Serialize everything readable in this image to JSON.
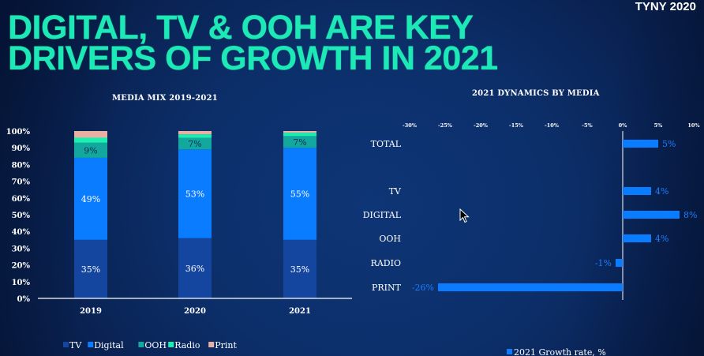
{
  "slide": {
    "title_lines": [
      "DIGITAL, TV & OOH ARE KEY",
      "DRIVERS OF GROWTH IN 2021"
    ],
    "brand": "TYNY 2020"
  },
  "colors": {
    "title": "#1de9b6",
    "TV": "#1446a0",
    "Digital": "#0a7cff",
    "OOH": "#13a89e",
    "Radio": "#19f0b0",
    "Print": "#e8b0a2",
    "growth_bar": "#0a7cff",
    "growth_label": "#1a7fff"
  },
  "chart_data": [
    {
      "type": "bar",
      "stacked": true,
      "title": "MEDIA MIX 2019-2021",
      "categories": [
        "2019",
        "2020",
        "2021"
      ],
      "series": [
        {
          "name": "TV",
          "values": [
            35,
            36,
            35
          ],
          "labels": [
            "35%",
            "36%",
            "35%"
          ]
        },
        {
          "name": "Digital",
          "values": [
            49,
            53,
            55
          ],
          "labels": [
            "49%",
            "53%",
            "55%"
          ]
        },
        {
          "name": "OOH",
          "values": [
            9,
            7,
            7
          ],
          "labels": [
            "9%",
            "7%",
            "7%"
          ]
        },
        {
          "name": "Radio",
          "values": [
            3,
            2,
            2
          ],
          "labels": [
            "",
            "",
            ""
          ]
        },
        {
          "name": "Print",
          "values": [
            4,
            2,
            1
          ],
          "labels": [
            "",
            "",
            ""
          ]
        }
      ],
      "yticks": [
        "0%",
        "10%",
        "20%",
        "30%",
        "40%",
        "50%",
        "60%",
        "70%",
        "80%",
        "90%",
        "100%"
      ],
      "ylim": [
        0,
        100
      ],
      "xlabel": "",
      "ylabel": "",
      "legend": {
        "placement": "bottom",
        "entries": [
          "TV",
          "Digital",
          "OOH",
          "Radio",
          "Print"
        ]
      },
      "grid": false
    },
    {
      "type": "bar",
      "orientation": "horizontal",
      "title": "2021 DYNAMICS BY MEDIA",
      "categories": [
        "TOTAL",
        "",
        "TV",
        "DIGITAL",
        "OOH",
        "RADIO",
        "PRINT"
      ],
      "series": [
        {
          "name": "2021 Growth rate, %",
          "values": [
            5,
            null,
            4,
            8,
            4,
            -1,
            -26
          ],
          "labels": [
            "5%",
            "",
            "4%",
            "8%",
            "4%",
            "-1%",
            "-26%"
          ]
        }
      ],
      "xticks": [
        "-30%",
        "-25%",
        "-20%",
        "-15%",
        "-10%",
        "-5%",
        "0%",
        "5%",
        "10%"
      ],
      "xlim": [
        -30,
        10
      ],
      "xaxis_position": "top",
      "legend": {
        "placement": "bottom",
        "entries": [
          "2021 Growth rate, %"
        ]
      },
      "grid": false
    }
  ]
}
